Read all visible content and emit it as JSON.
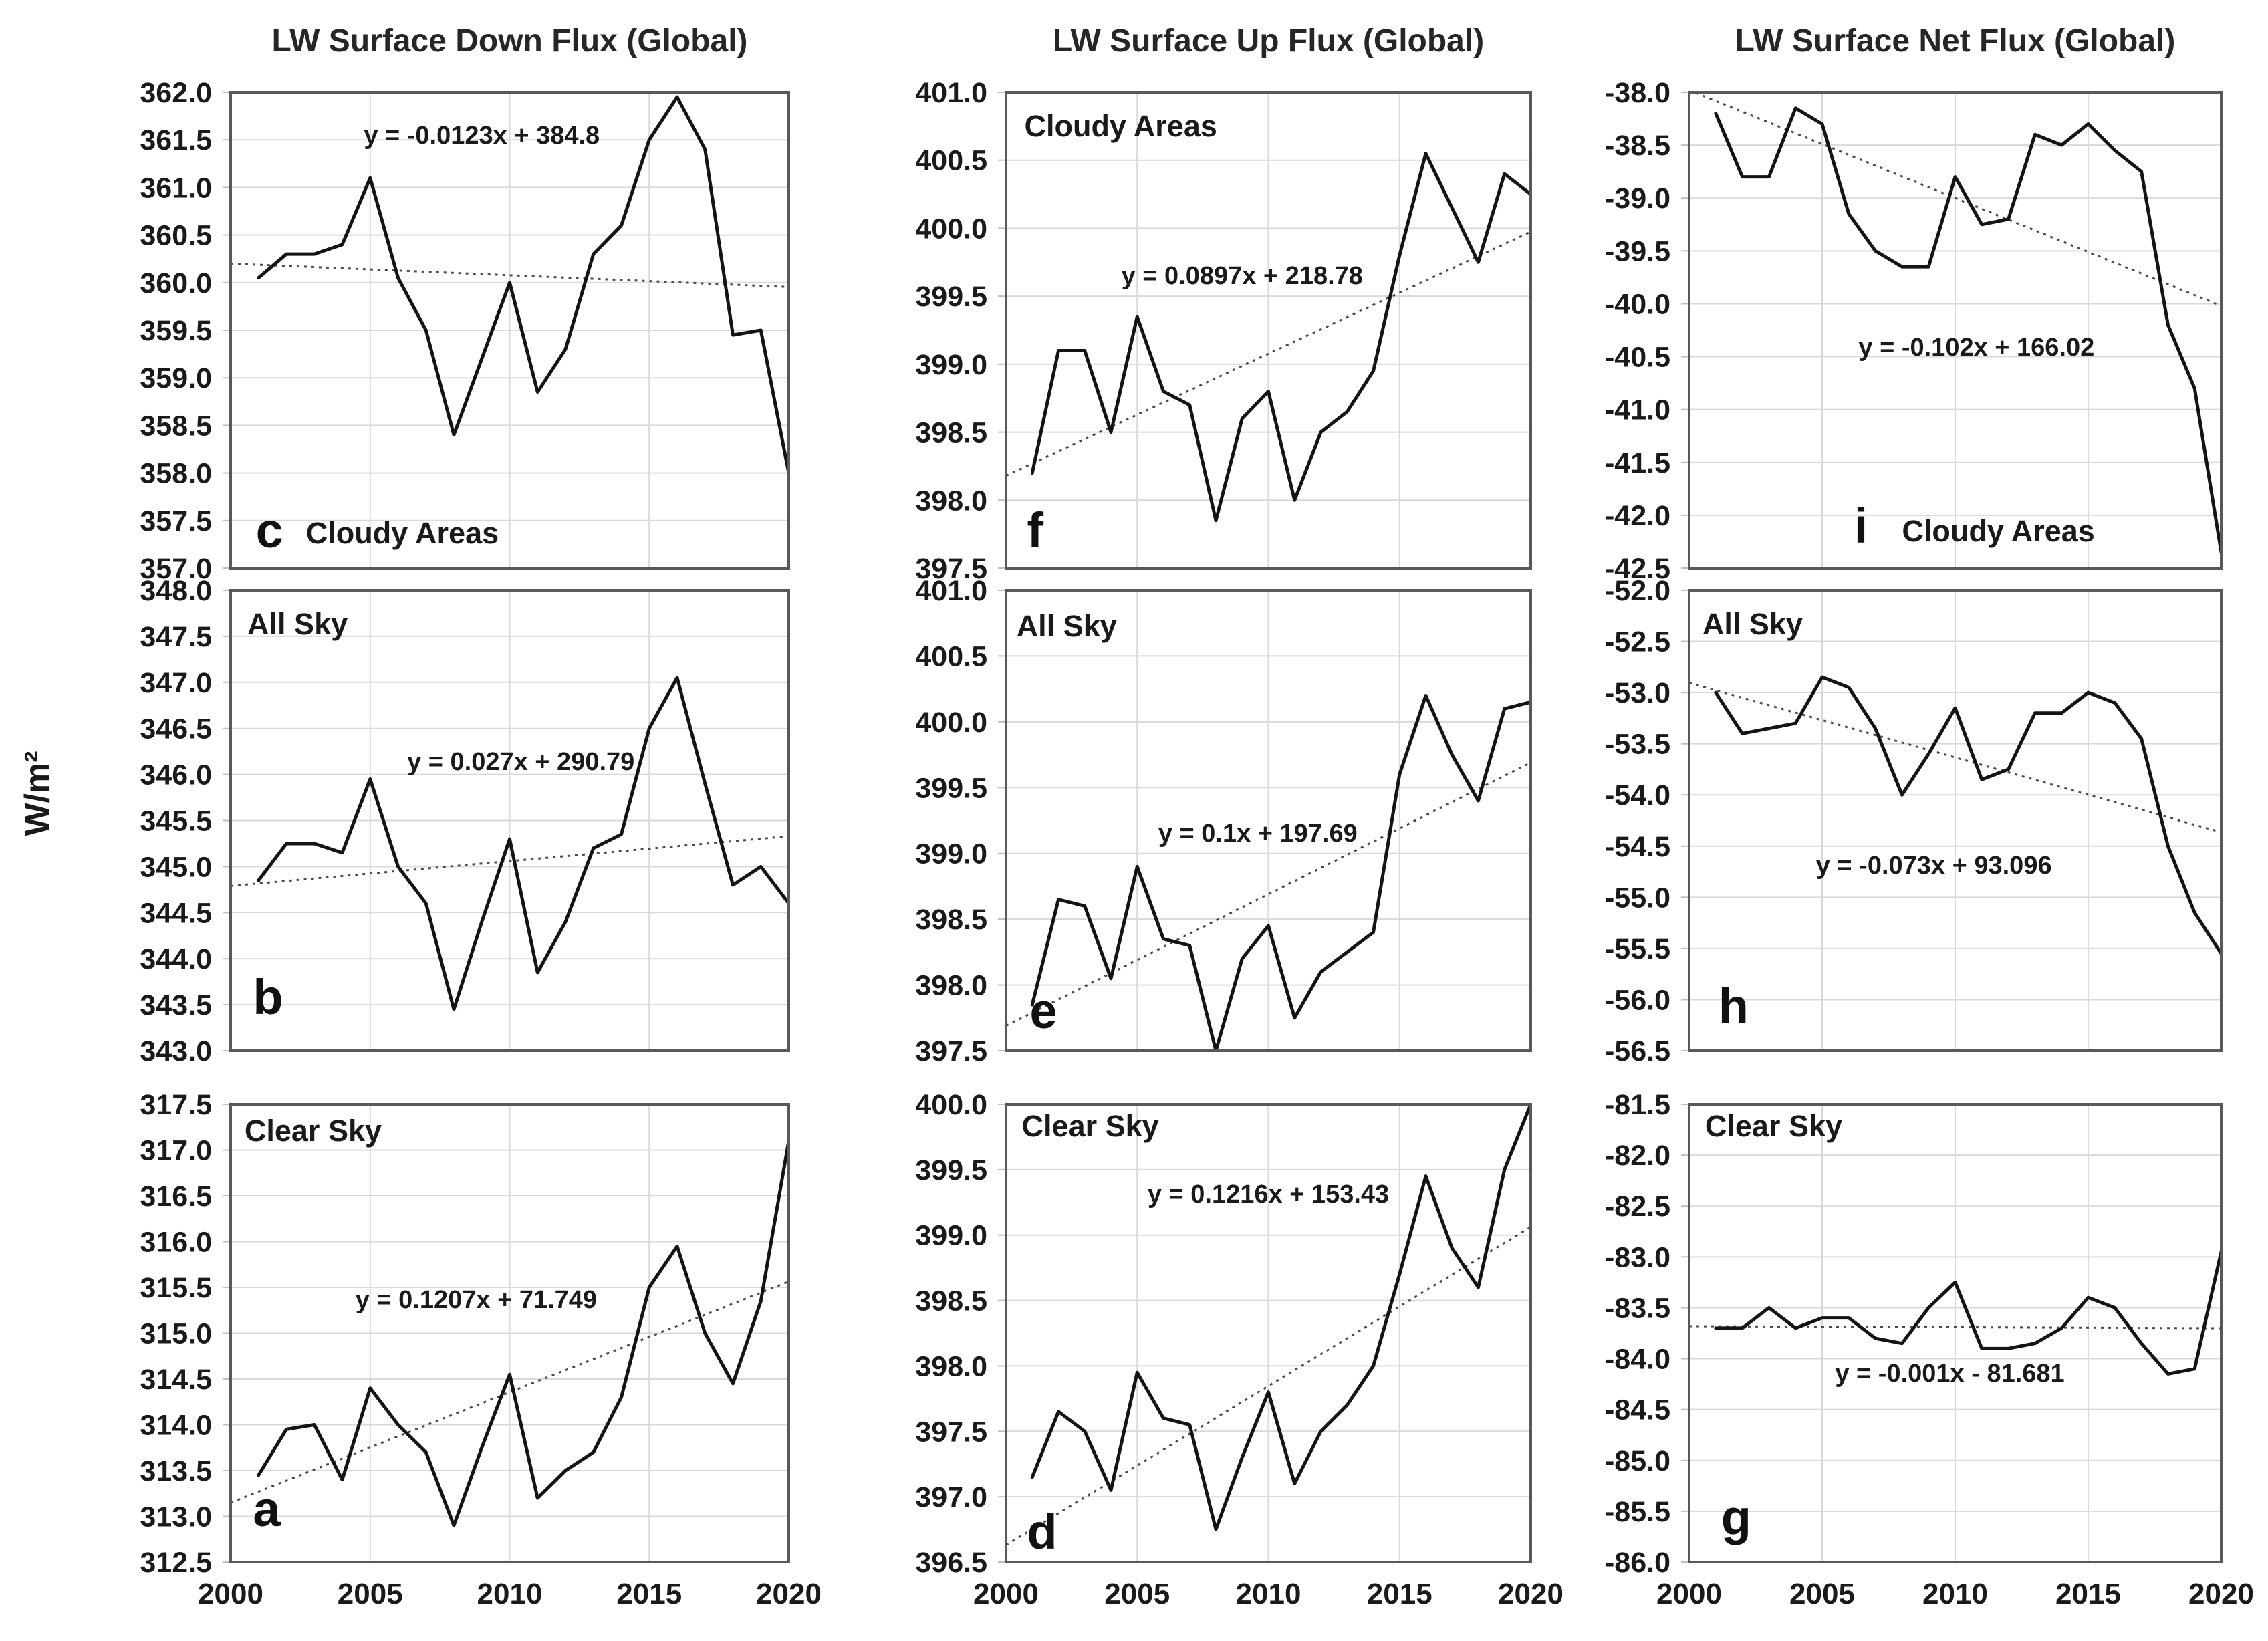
{
  "figure": {
    "y_axis_label": "W/m²",
    "column_titles": [
      "LW Surface Down Flux (Global)",
      "LW Surface Up Flux (Global)",
      "LW Surface Net Flux (Global)"
    ],
    "x_tick_labels": [
      "2000",
      "2005",
      "2010",
      "2015",
      "2020"
    ]
  },
  "chart_data": [
    {
      "type": "line",
      "panel_letter": "c",
      "series_label": "Cloudy Areas",
      "column_title": "LW Surface Down Flux (Global)",
      "equation": "y = -0.0123x + 384.8",
      "trend_slope": -0.0123,
      "trend_intercept": 384.8,
      "ylim": [
        357.0,
        362.0
      ],
      "ytick_step": 0.5,
      "xlim": [
        2000,
        2020
      ],
      "xticks": [
        2000,
        2005,
        2010,
        2015,
        2020
      ],
      "x": [
        2001,
        2002,
        2003,
        2004,
        2005,
        2006,
        2007,
        2008,
        2009,
        2010,
        2011,
        2012,
        2013,
        2014,
        2015,
        2016,
        2017,
        2018,
        2019,
        2020
      ],
      "values": [
        360.05,
        360.3,
        360.3,
        360.4,
        361.1,
        360.05,
        359.5,
        358.4,
        359.2,
        360.0,
        358.85,
        359.3,
        360.3,
        360.6,
        361.5,
        361.95,
        361.4,
        359.45,
        359.5,
        358.0
      ]
    },
    {
      "type": "line",
      "panel_letter": "b",
      "series_label": "All Sky",
      "column_title": "LW Surface Down Flux (Global)",
      "equation": "y = 0.027x + 290.79",
      "trend_slope": 0.027,
      "trend_intercept": 290.79,
      "ylim": [
        343.0,
        348.0
      ],
      "ytick_step": 0.5,
      "xlim": [
        2000,
        2020
      ],
      "xticks": [
        2000,
        2005,
        2010,
        2015,
        2020
      ],
      "x": [
        2001,
        2002,
        2003,
        2004,
        2005,
        2006,
        2007,
        2008,
        2009,
        2010,
        2011,
        2012,
        2013,
        2014,
        2015,
        2016,
        2017,
        2018,
        2019,
        2020
      ],
      "values": [
        344.85,
        345.25,
        345.25,
        345.15,
        345.95,
        345.0,
        344.6,
        343.45,
        344.4,
        345.3,
        343.85,
        344.4,
        345.2,
        345.35,
        346.5,
        347.05,
        345.9,
        344.8,
        345.0,
        344.6
      ]
    },
    {
      "type": "line",
      "panel_letter": "a",
      "series_label": "Clear Sky",
      "column_title": "LW Surface Down Flux (Global)",
      "equation": "y = 0.1207x + 71.749",
      "trend_slope": 0.1207,
      "trend_intercept": 71.749,
      "ylim": [
        312.5,
        317.5
      ],
      "ytick_step": 0.5,
      "xlim": [
        2000,
        2020
      ],
      "xticks": [
        2000,
        2005,
        2010,
        2015,
        2020
      ],
      "x": [
        2001,
        2002,
        2003,
        2004,
        2005,
        2006,
        2007,
        2008,
        2009,
        2010,
        2011,
        2012,
        2013,
        2014,
        2015,
        2016,
        2017,
        2018,
        2019,
        2020
      ],
      "values": [
        313.45,
        313.95,
        314.0,
        313.4,
        314.4,
        314.0,
        313.7,
        312.9,
        313.75,
        314.55,
        313.2,
        313.5,
        313.7,
        314.3,
        315.5,
        315.95,
        315.0,
        314.45,
        315.35,
        317.1
      ]
    },
    {
      "type": "line",
      "panel_letter": "f",
      "series_label": "Cloudy Areas",
      "column_title": "LW Surface Up Flux (Global)",
      "equation": "y = 0.0897x + 218.78",
      "trend_slope": 0.0897,
      "trend_intercept": 218.78,
      "ylim": [
        397.5,
        401.0
      ],
      "ytick_step": 0.5,
      "xlim": [
        2000,
        2020
      ],
      "xticks": [
        2000,
        2005,
        2010,
        2015,
        2020
      ],
      "x": [
        2001,
        2002,
        2003,
        2004,
        2005,
        2006,
        2007,
        2008,
        2009,
        2010,
        2011,
        2012,
        2013,
        2014,
        2015,
        2016,
        2017,
        2018,
        2019,
        2020
      ],
      "values": [
        398.2,
        399.1,
        399.1,
        398.5,
        399.35,
        398.8,
        398.7,
        397.85,
        398.6,
        398.8,
        398.0,
        398.5,
        398.65,
        398.95,
        399.8,
        400.55,
        400.15,
        399.75,
        400.4,
        400.25
      ]
    },
    {
      "type": "line",
      "panel_letter": "e",
      "series_label": "All Sky",
      "column_title": "LW Surface Up Flux (Global)",
      "equation": "y = 0.1x + 197.69",
      "trend_slope": 0.1,
      "trend_intercept": 197.69,
      "ylim": [
        397.5,
        401.0
      ],
      "ytick_step": 0.5,
      "xlim": [
        2000,
        2020
      ],
      "xticks": [
        2000,
        2005,
        2010,
        2015,
        2020
      ],
      "x": [
        2001,
        2002,
        2003,
        2004,
        2005,
        2006,
        2007,
        2008,
        2009,
        2010,
        2011,
        2012,
        2013,
        2014,
        2015,
        2016,
        2017,
        2018,
        2019,
        2020
      ],
      "values": [
        397.85,
        398.65,
        398.6,
        398.05,
        398.9,
        398.35,
        398.3,
        397.5,
        398.2,
        398.45,
        397.75,
        398.1,
        398.25,
        398.4,
        399.6,
        400.2,
        399.75,
        399.4,
        400.1,
        400.15
      ]
    },
    {
      "type": "line",
      "panel_letter": "d",
      "series_label": "Clear Sky",
      "column_title": "LW Surface Up Flux (Global)",
      "equation": "y = 0.1216x + 153.43",
      "trend_slope": 0.1216,
      "trend_intercept": 153.43,
      "ylim": [
        396.5,
        400.0
      ],
      "ytick_step": 0.5,
      "xlim": [
        2000,
        2020
      ],
      "xticks": [
        2000,
        2005,
        2010,
        2015,
        2020
      ],
      "x": [
        2001,
        2002,
        2003,
        2004,
        2005,
        2006,
        2007,
        2008,
        2009,
        2010,
        2011,
        2012,
        2013,
        2014,
        2015,
        2016,
        2017,
        2018,
        2019,
        2020
      ],
      "values": [
        397.15,
        397.65,
        397.5,
        397.05,
        397.95,
        397.6,
        397.55,
        396.75,
        397.3,
        397.8,
        397.1,
        397.5,
        397.7,
        398.0,
        398.7,
        399.45,
        398.9,
        398.6,
        399.5,
        400.0
      ]
    },
    {
      "type": "line",
      "panel_letter": "i",
      "series_label": "Cloudy Areas",
      "column_title": "LW Surface Net Flux (Global)",
      "equation": "y = -0.102x + 166.02",
      "trend_slope": -0.102,
      "trend_intercept": 166.02,
      "ylim": [
        -42.5,
        -38.0
      ],
      "ytick_step": 0.5,
      "xlim": [
        2000,
        2020
      ],
      "xticks": [
        2000,
        2005,
        2010,
        2015,
        2020
      ],
      "x": [
        2001,
        2002,
        2003,
        2004,
        2005,
        2006,
        2007,
        2008,
        2009,
        2010,
        2011,
        2012,
        2013,
        2014,
        2015,
        2016,
        2017,
        2018,
        2019,
        2020
      ],
      "values": [
        -38.2,
        -38.8,
        -38.8,
        -38.15,
        -38.3,
        -39.15,
        -39.5,
        -39.65,
        -39.65,
        -38.8,
        -39.25,
        -39.2,
        -38.4,
        -38.5,
        -38.3,
        -38.55,
        -38.75,
        -40.2,
        -40.8,
        -42.35
      ]
    },
    {
      "type": "line",
      "panel_letter": "h",
      "series_label": "All Sky",
      "column_title": "LW Surface Net Flux (Global)",
      "equation": "y = -0.073x + 93.096",
      "trend_slope": -0.073,
      "trend_intercept": 93.096,
      "ylim": [
        -56.5,
        -52.0
      ],
      "ytick_step": 0.5,
      "xlim": [
        2000,
        2020
      ],
      "xticks": [
        2000,
        2005,
        2010,
        2015,
        2020
      ],
      "x": [
        2001,
        2002,
        2003,
        2004,
        2005,
        2006,
        2007,
        2008,
        2009,
        2010,
        2011,
        2012,
        2013,
        2014,
        2015,
        2016,
        2017,
        2018,
        2019,
        2020
      ],
      "values": [
        -53.0,
        -53.4,
        -53.35,
        -53.3,
        -52.85,
        -52.95,
        -53.35,
        -54.0,
        -53.6,
        -53.15,
        -53.85,
        -53.75,
        -53.2,
        -53.2,
        -53.0,
        -53.1,
        -53.45,
        -54.5,
        -55.15,
        -55.55
      ]
    },
    {
      "type": "line",
      "panel_letter": "g",
      "series_label": "Clear Sky",
      "column_title": "LW Surface Net Flux (Global)",
      "equation": "y = -0.001x - 81.681",
      "trend_slope": -0.001,
      "trend_intercept": -81.681,
      "ylim": [
        -86.0,
        -81.5
      ],
      "ytick_step": 0.5,
      "xlim": [
        2000,
        2020
      ],
      "xticks": [
        2000,
        2005,
        2010,
        2015,
        2020
      ],
      "x": [
        2001,
        2002,
        2003,
        2004,
        2005,
        2006,
        2007,
        2008,
        2009,
        2010,
        2011,
        2012,
        2013,
        2014,
        2015,
        2016,
        2017,
        2018,
        2019,
        2020
      ],
      "values": [
        -83.7,
        -83.7,
        -83.5,
        -83.7,
        -83.6,
        -83.6,
        -83.8,
        -83.85,
        -83.5,
        -83.25,
        -83.9,
        -83.9,
        -83.85,
        -83.7,
        -83.4,
        -83.5,
        -83.85,
        -84.15,
        -84.1,
        -82.95
      ]
    }
  ]
}
